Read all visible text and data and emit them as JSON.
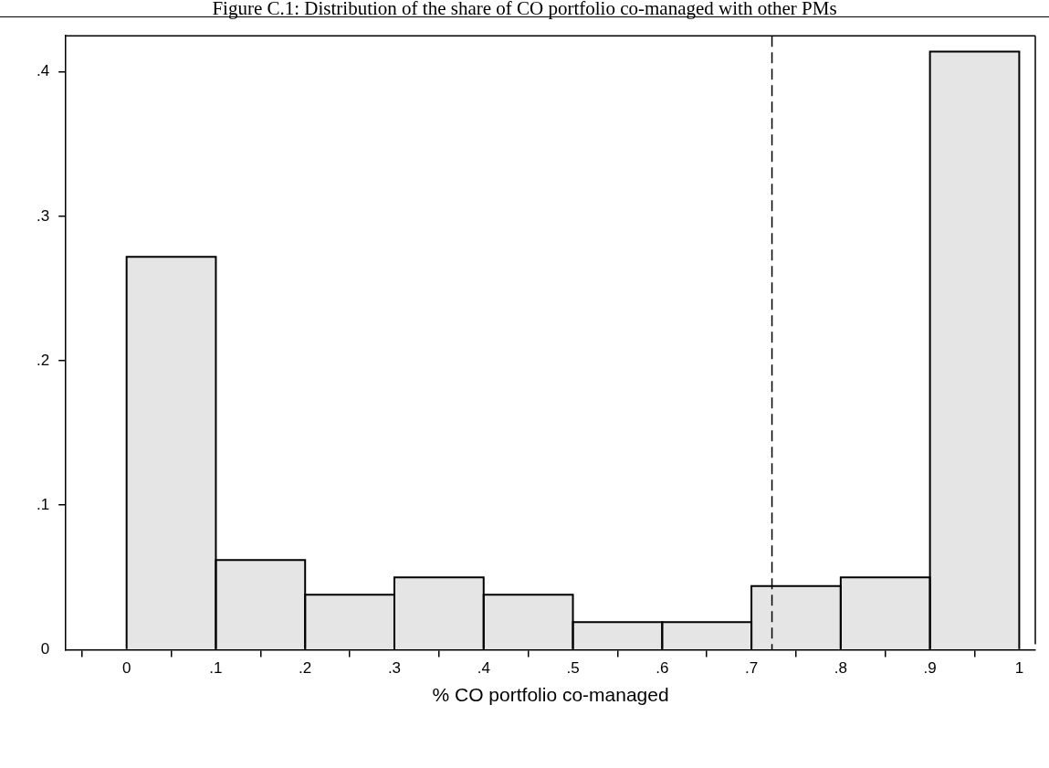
{
  "chart_data": {
    "type": "histogram",
    "title": "Figure C.1: Distribution of the share of CO portfolio co-managed with other PMs",
    "xlabel": "% CO portfolio co-managed",
    "bins": [
      0,
      0.1,
      0.2,
      0.3,
      0.4,
      0.5,
      0.6,
      0.7,
      0.8,
      0.9,
      1
    ],
    "values": [
      0.272,
      0.062,
      0.038,
      0.05,
      0.038,
      0.019,
      0.019,
      0.044,
      0.05,
      0.414
    ],
    "color": "#e5e5e5",
    "xlim": [
      -0.068,
      1.018
    ],
    "xticks": [
      0,
      {
        "value": 0.1,
        "label": ".1"
      },
      {
        "value": 0.2,
        "label": ".2"
      },
      {
        "value": 0.3,
        "label": ".3"
      },
      {
        "value": 0.4,
        "label": ".4"
      },
      {
        "value": 0.5,
        "label": ".5"
      },
      {
        "value": 0.6,
        "label": ".6"
      },
      {
        "value": 0.7,
        "label": ".7"
      },
      {
        "value": 0.8,
        "label": ".8"
      },
      {
        "value": 0.9,
        "label": ".9"
      },
      1
    ],
    "ylim": [
      0,
      0.425
    ],
    "yticks": [
      0,
      {
        "value": 0.1,
        "label": ".1"
      },
      {
        "value": 0.2,
        "label": ".2"
      },
      {
        "value": 0.3,
        "label": ".3"
      },
      {
        "value": 0.4,
        "label": ".4"
      }
    ],
    "ref_lines": [
      {
        "axis": "x",
        "value": 0.723,
        "line_style": "dashed",
        "color": "#000000"
      }
    ],
    "grid": false,
    "legend": false
  }
}
